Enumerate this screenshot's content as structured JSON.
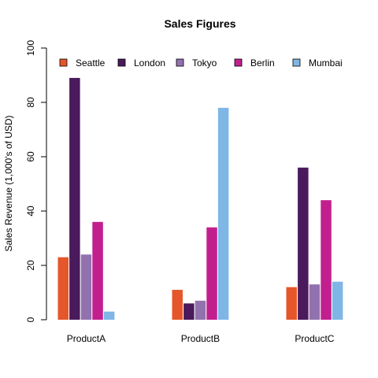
{
  "chart_data": {
    "type": "bar",
    "title": "Sales Figures",
    "xlabel": "",
    "ylabel": "Sales Revenue (1,000's of USD)",
    "ylim": [
      0,
      100
    ],
    "yticks": [
      0,
      20,
      40,
      60,
      80,
      100
    ],
    "categories": [
      "ProductA",
      "ProductB",
      "ProductC"
    ],
    "series": [
      {
        "name": "Seattle",
        "color": "#E6562B",
        "values": [
          23,
          11,
          12
        ]
      },
      {
        "name": "London",
        "color": "#4A1A5C",
        "values": [
          89,
          6,
          56
        ]
      },
      {
        "name": "Tokyo",
        "color": "#9272AE",
        "values": [
          24,
          7,
          13
        ]
      },
      {
        "name": "Berlin",
        "color": "#C21F8E",
        "values": [
          36,
          34,
          44
        ]
      },
      {
        "name": "Mumbai",
        "color": "#7FB6E6",
        "values": [
          3,
          78,
          14
        ]
      }
    ],
    "legend_position": "top",
    "grid": false
  }
}
